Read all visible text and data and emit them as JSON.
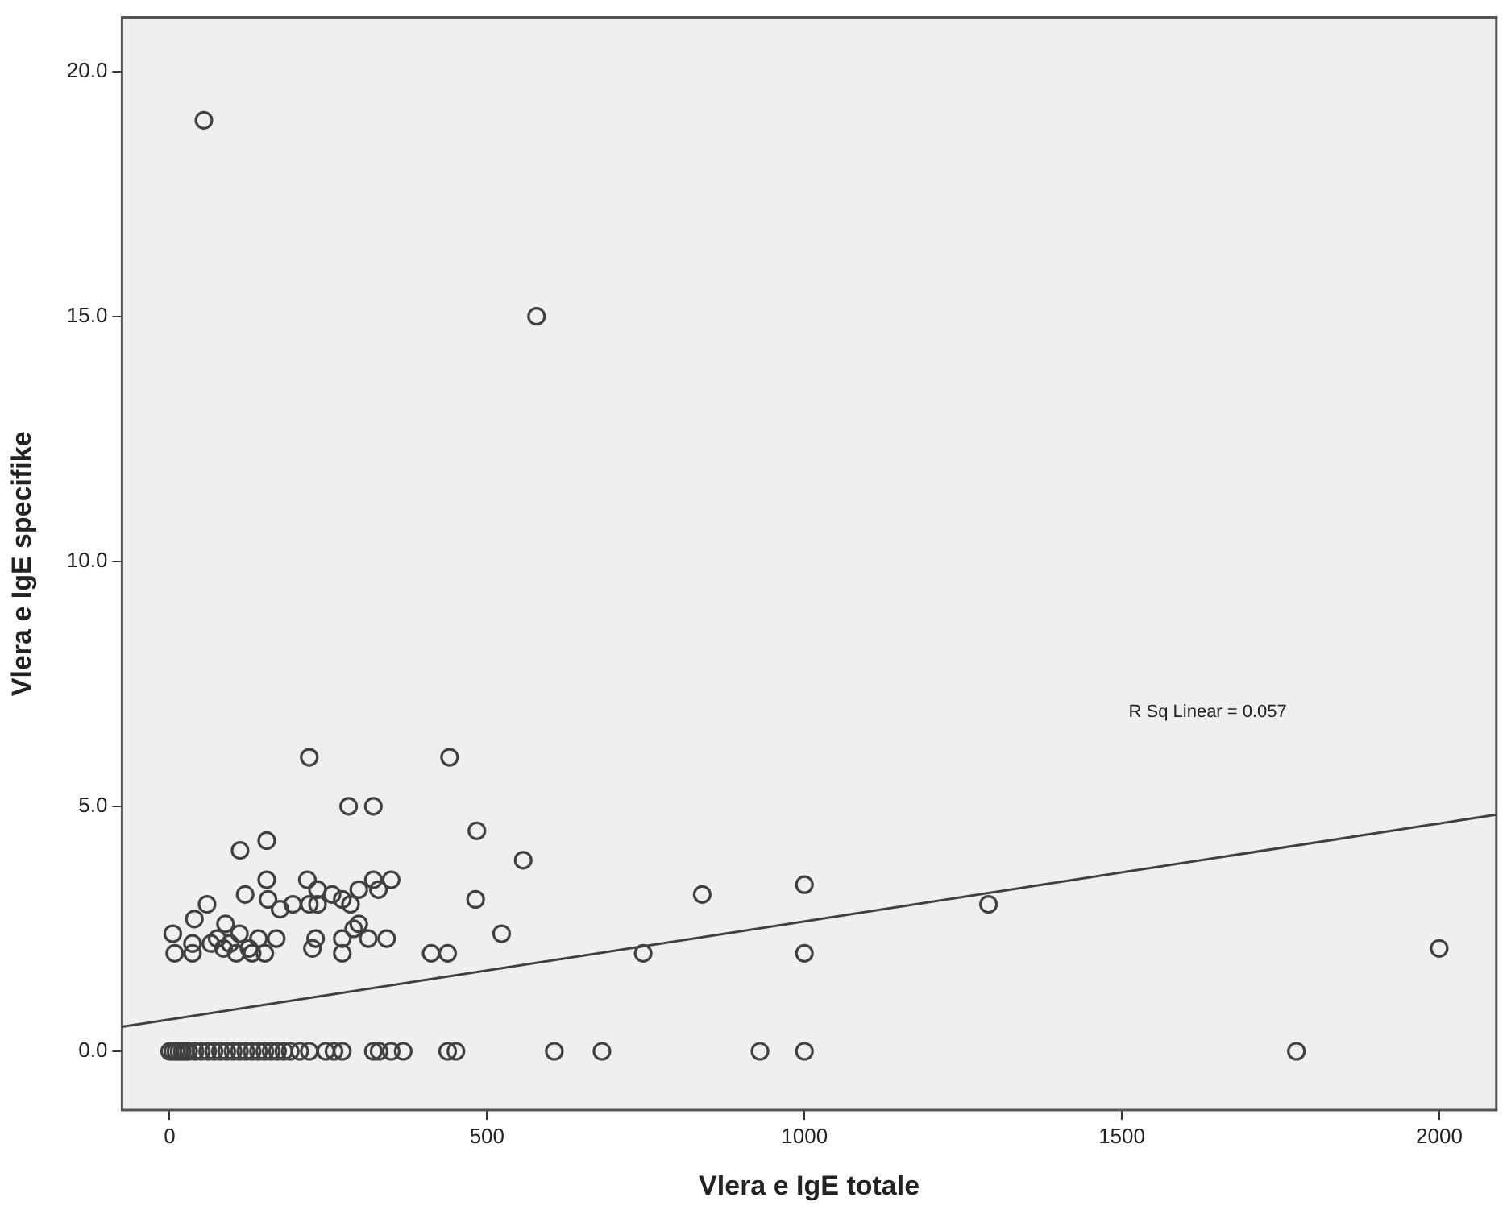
{
  "chart_data": {
    "type": "scatter",
    "xlabel": "Vlera e IgE totale",
    "ylabel": "Vlera e IgE specifike",
    "xlim": [
      -75,
      2090
    ],
    "ylim": [
      -1.2,
      21.1
    ],
    "xticks": [
      0,
      500,
      1000,
      1500,
      2000
    ],
    "yticks": [
      {
        "value": 0,
        "label": "0.0"
      },
      {
        "value": 5,
        "label": "5.0"
      },
      {
        "value": 10,
        "label": "10.0"
      },
      {
        "value": 15,
        "label": "15.0"
      },
      {
        "value": 20,
        "label": "20.0"
      }
    ],
    "grid": false,
    "legend": false,
    "annotations": [
      "R Sq Linear = 0.057"
    ],
    "series": [
      {
        "type": "scatter",
        "marker": "circle",
        "color": "#404040",
        "x": [
          54,
          578,
          220,
          441,
          282,
          321,
          484,
          557,
          111,
          153,
          482,
          523,
          412,
          438,
          5,
          8,
          36,
          39,
          59,
          36,
          65,
          88,
          75,
          85,
          95,
          105,
          110,
          125,
          130,
          140,
          150,
          119,
          153,
          155,
          174,
          168,
          194,
          217,
          220,
          233,
          233,
          230,
          225,
          256,
          272,
          285,
          272,
          272,
          290,
          298,
          298,
          321,
          329,
          349,
          313,
          342,
          839,
          1000,
          746,
          1000,
          1290,
          2000
        ],
        "values": [
          19.0,
          15.0,
          6.0,
          6.0,
          5.0,
          5.0,
          4.5,
          3.9,
          4.1,
          4.3,
          3.1,
          2.4,
          2.0,
          2.0,
          2.4,
          2.0,
          2.0,
          2.7,
          3.0,
          2.2,
          2.2,
          2.6,
          2.3,
          2.1,
          2.2,
          2.0,
          2.4,
          2.1,
          2.0,
          2.3,
          2.0,
          3.2,
          3.5,
          3.1,
          2.9,
          2.3,
          3.0,
          3.5,
          3.0,
          3.0,
          3.3,
          2.3,
          2.1,
          3.2,
          3.1,
          3.0,
          2.3,
          2.0,
          2.5,
          2.6,
          3.3,
          3.5,
          3.3,
          3.5,
          2.3,
          2.3,
          3.2,
          3.4,
          2.0,
          2.0,
          3.0,
          2.1
        ]
      },
      {
        "type": "scatter",
        "marker": "circle",
        "color": "#404040",
        "x": [
          0,
          5,
          10,
          15,
          20,
          25,
          30,
          40,
          50,
          60,
          70,
          80,
          90,
          100,
          110,
          120,
          130,
          140,
          150,
          160,
          170,
          180,
          190,
          205,
          220,
          246,
          259,
          272,
          321,
          330,
          349,
          368,
          438,
          451,
          606,
          681,
          930,
          1000,
          1775
        ],
        "values": [
          0,
          0,
          0,
          0,
          0,
          0,
          0,
          0,
          0,
          0,
          0,
          0,
          0,
          0,
          0,
          0,
          0,
          0,
          0,
          0,
          0,
          0,
          0,
          0,
          0,
          0,
          0,
          0,
          0,
          0,
          0,
          0,
          0,
          0,
          0,
          0,
          0,
          0,
          0
        ]
      },
      {
        "type": "line",
        "color": "#404040",
        "x": [
          -75,
          2090
        ],
        "values": [
          0.5,
          4.83
        ]
      }
    ]
  }
}
